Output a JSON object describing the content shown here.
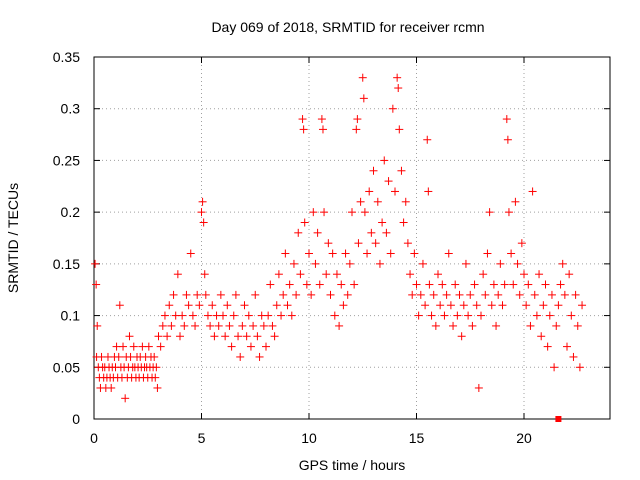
{
  "chart_data": {
    "type": "scatter",
    "title": "Day 069 of 2018, SRMTID for receiver rcmn",
    "xlabel": "GPS time / hours",
    "ylabel": "SRMTID / TECUs",
    "xlim": [
      0,
      24
    ],
    "ylim": [
      0,
      0.35
    ],
    "xticks": [
      0,
      5,
      10,
      15,
      20
    ],
    "xtick_labels": [
      "0",
      "5",
      "10",
      "15",
      "20"
    ],
    "yticks": [
      0,
      0.05,
      0.1,
      0.15,
      0.2,
      0.25,
      0.3,
      0.35
    ],
    "ytick_labels": [
      "0",
      "0.05",
      "0.1",
      "0.15",
      "0.2",
      "0.25",
      "0.3",
      "0.35"
    ],
    "grid": true,
    "marker": "+",
    "color": "#ff0000",
    "outlier_marker": {
      "x": 21.6,
      "y": 0.0,
      "shape": "square"
    },
    "series": [
      {
        "name": "SRMTID",
        "points": [
          [
            0.05,
            0.15
          ],
          [
            0.1,
            0.13
          ],
          [
            0.12,
            0.06
          ],
          [
            0.15,
            0.09
          ],
          [
            0.2,
            0.05
          ],
          [
            0.25,
            0.04
          ],
          [
            0.3,
            0.03
          ],
          [
            0.35,
            0.06
          ],
          [
            0.4,
            0.05
          ],
          [
            0.45,
            0.04
          ],
          [
            0.5,
            0.05
          ],
          [
            0.55,
            0.03
          ],
          [
            0.6,
            0.04
          ],
          [
            0.65,
            0.06
          ],
          [
            0.7,
            0.05
          ],
          [
            0.75,
            0.04
          ],
          [
            0.8,
            0.03
          ],
          [
            0.85,
            0.05
          ],
          [
            0.9,
            0.04
          ],
          [
            0.95,
            0.06
          ],
          [
            1.0,
            0.05
          ],
          [
            1.05,
            0.07
          ],
          [
            1.1,
            0.04
          ],
          [
            1.15,
            0.06
          ],
          [
            1.2,
            0.11
          ],
          [
            1.25,
            0.05
          ],
          [
            1.3,
            0.04
          ],
          [
            1.35,
            0.07
          ],
          [
            1.4,
            0.05
          ],
          [
            1.45,
            0.02
          ],
          [
            1.5,
            0.06
          ],
          [
            1.55,
            0.04
          ],
          [
            1.6,
            0.05
          ],
          [
            1.65,
            0.08
          ],
          [
            1.7,
            0.06
          ],
          [
            1.75,
            0.04
          ],
          [
            1.8,
            0.05
          ],
          [
            1.85,
            0.07
          ],
          [
            1.9,
            0.05
          ],
          [
            1.95,
            0.04
          ],
          [
            2.0,
            0.06
          ],
          [
            2.05,
            0.05
          ],
          [
            2.1,
            0.04
          ],
          [
            2.15,
            0.06
          ],
          [
            2.2,
            0.05
          ],
          [
            2.25,
            0.07
          ],
          [
            2.3,
            0.04
          ],
          [
            2.35,
            0.05
          ],
          [
            2.4,
            0.06
          ],
          [
            2.45,
            0.05
          ],
          [
            2.5,
            0.04
          ],
          [
            2.55,
            0.07
          ],
          [
            2.6,
            0.05
          ],
          [
            2.65,
            0.06
          ],
          [
            2.7,
            0.04
          ],
          [
            2.75,
            0.05
          ],
          [
            2.8,
            0.06
          ],
          [
            2.85,
            0.04
          ],
          [
            2.9,
            0.05
          ],
          [
            2.95,
            0.03
          ],
          [
            3.0,
            0.08
          ],
          [
            3.1,
            0.07
          ],
          [
            3.2,
            0.09
          ],
          [
            3.3,
            0.1
          ],
          [
            3.4,
            0.08
          ],
          [
            3.5,
            0.11
          ],
          [
            3.6,
            0.09
          ],
          [
            3.7,
            0.12
          ],
          [
            3.8,
            0.1
          ],
          [
            3.9,
            0.14
          ],
          [
            4.0,
            0.08
          ],
          [
            4.1,
            0.1
          ],
          [
            4.2,
            0.09
          ],
          [
            4.3,
            0.12
          ],
          [
            4.4,
            0.11
          ],
          [
            4.5,
            0.16
          ],
          [
            4.6,
            0.1
          ],
          [
            4.7,
            0.09
          ],
          [
            4.8,
            0.12
          ],
          [
            4.9,
            0.11
          ],
          [
            5.0,
            0.2
          ],
          [
            5.05,
            0.21
          ],
          [
            5.1,
            0.19
          ],
          [
            5.15,
            0.14
          ],
          [
            5.2,
            0.12
          ],
          [
            5.3,
            0.1
          ],
          [
            5.4,
            0.09
          ],
          [
            5.5,
            0.11
          ],
          [
            5.6,
            0.08
          ],
          [
            5.7,
            0.1
          ],
          [
            5.8,
            0.09
          ],
          [
            5.9,
            0.12
          ],
          [
            6.0,
            0.1
          ],
          [
            6.1,
            0.08
          ],
          [
            6.2,
            0.11
          ],
          [
            6.3,
            0.09
          ],
          [
            6.4,
            0.07
          ],
          [
            6.5,
            0.1
          ],
          [
            6.6,
            0.12
          ],
          [
            6.7,
            0.08
          ],
          [
            6.8,
            0.06
          ],
          [
            6.9,
            0.09
          ],
          [
            7.0,
            0.11
          ],
          [
            7.1,
            0.08
          ],
          [
            7.2,
            0.1
          ],
          [
            7.3,
            0.07
          ],
          [
            7.4,
            0.09
          ],
          [
            7.5,
            0.12
          ],
          [
            7.6,
            0.08
          ],
          [
            7.7,
            0.06
          ],
          [
            7.8,
            0.1
          ],
          [
            7.9,
            0.09
          ],
          [
            8.0,
            0.07
          ],
          [
            8.1,
            0.1
          ],
          [
            8.2,
            0.13
          ],
          [
            8.3,
            0.09
          ],
          [
            8.4,
            0.08
          ],
          [
            8.5,
            0.11
          ],
          [
            8.6,
            0.14
          ],
          [
            8.7,
            0.1
          ],
          [
            8.8,
            0.12
          ],
          [
            8.9,
            0.16
          ],
          [
            9.0,
            0.11
          ],
          [
            9.1,
            0.13
          ],
          [
            9.2,
            0.1
          ],
          [
            9.3,
            0.15
          ],
          [
            9.4,
            0.12
          ],
          [
            9.5,
            0.18
          ],
          [
            9.6,
            0.14
          ],
          [
            9.7,
            0.29
          ],
          [
            9.75,
            0.28
          ],
          [
            9.8,
            0.19
          ],
          [
            9.9,
            0.13
          ],
          [
            10.0,
            0.16
          ],
          [
            10.1,
            0.12
          ],
          [
            10.2,
            0.2
          ],
          [
            10.3,
            0.15
          ],
          [
            10.4,
            0.18
          ],
          [
            10.5,
            0.13
          ],
          [
            10.6,
            0.29
          ],
          [
            10.65,
            0.28
          ],
          [
            10.7,
            0.2
          ],
          [
            10.8,
            0.14
          ],
          [
            10.9,
            0.17
          ],
          [
            11.0,
            0.12
          ],
          [
            11.1,
            0.16
          ],
          [
            11.2,
            0.1
          ],
          [
            11.3,
            0.14
          ],
          [
            11.4,
            0.09
          ],
          [
            11.5,
            0.13
          ],
          [
            11.6,
            0.11
          ],
          [
            11.7,
            0.16
          ],
          [
            11.8,
            0.12
          ],
          [
            11.9,
            0.15
          ],
          [
            12.0,
            0.2
          ],
          [
            12.1,
            0.13
          ],
          [
            12.2,
            0.28
          ],
          [
            12.25,
            0.29
          ],
          [
            12.3,
            0.17
          ],
          [
            12.4,
            0.21
          ],
          [
            12.5,
            0.33
          ],
          [
            12.55,
            0.31
          ],
          [
            12.6,
            0.2
          ],
          [
            12.7,
            0.16
          ],
          [
            12.8,
            0.22
          ],
          [
            12.9,
            0.18
          ],
          [
            13.0,
            0.24
          ],
          [
            13.1,
            0.17
          ],
          [
            13.2,
            0.21
          ],
          [
            13.3,
            0.15
          ],
          [
            13.4,
            0.19
          ],
          [
            13.5,
            0.25
          ],
          [
            13.6,
            0.18
          ],
          [
            13.7,
            0.23
          ],
          [
            13.8,
            0.16
          ],
          [
            13.9,
            0.3
          ],
          [
            14.0,
            0.22
          ],
          [
            14.1,
            0.33
          ],
          [
            14.15,
            0.32
          ],
          [
            14.2,
            0.28
          ],
          [
            14.3,
            0.24
          ],
          [
            14.4,
            0.19
          ],
          [
            14.5,
            0.21
          ],
          [
            14.6,
            0.17
          ],
          [
            14.7,
            0.14
          ],
          [
            14.8,
            0.12
          ],
          [
            14.9,
            0.16
          ],
          [
            15.0,
            0.13
          ],
          [
            15.1,
            0.1
          ],
          [
            15.2,
            0.12
          ],
          [
            15.3,
            0.15
          ],
          [
            15.4,
            0.11
          ],
          [
            15.5,
            0.27
          ],
          [
            15.55,
            0.22
          ],
          [
            15.6,
            0.13
          ],
          [
            15.7,
            0.1
          ],
          [
            15.8,
            0.12
          ],
          [
            15.9,
            0.09
          ],
          [
            16.0,
            0.14
          ],
          [
            16.1,
            0.11
          ],
          [
            16.2,
            0.13
          ],
          [
            16.3,
            0.1
          ],
          [
            16.4,
            0.12
          ],
          [
            16.5,
            0.16
          ],
          [
            16.6,
            0.11
          ],
          [
            16.7,
            0.09
          ],
          [
            16.8,
            0.13
          ],
          [
            16.9,
            0.1
          ],
          [
            17.0,
            0.12
          ],
          [
            17.1,
            0.08
          ],
          [
            17.2,
            0.11
          ],
          [
            17.3,
            0.15
          ],
          [
            17.4,
            0.1
          ],
          [
            17.5,
            0.12
          ],
          [
            17.6,
            0.09
          ],
          [
            17.7,
            0.13
          ],
          [
            17.8,
            0.11
          ],
          [
            17.9,
            0.03
          ],
          [
            18.0,
            0.1
          ],
          [
            18.1,
            0.14
          ],
          [
            18.2,
            0.12
          ],
          [
            18.3,
            0.16
          ],
          [
            18.4,
            0.2
          ],
          [
            18.5,
            0.11
          ],
          [
            18.6,
            0.13
          ],
          [
            18.7,
            0.09
          ],
          [
            18.8,
            0.12
          ],
          [
            18.9,
            0.15
          ],
          [
            19.0,
            0.11
          ],
          [
            19.1,
            0.13
          ],
          [
            19.2,
            0.29
          ],
          [
            19.25,
            0.27
          ],
          [
            19.3,
            0.2
          ],
          [
            19.4,
            0.16
          ],
          [
            19.5,
            0.13
          ],
          [
            19.6,
            0.21
          ],
          [
            19.7,
            0.15
          ],
          [
            19.8,
            0.12
          ],
          [
            19.9,
            0.17
          ],
          [
            20.0,
            0.14
          ],
          [
            20.1,
            0.11
          ],
          [
            20.2,
            0.13
          ],
          [
            20.3,
            0.09
          ],
          [
            20.4,
            0.22
          ],
          [
            20.5,
            0.12
          ],
          [
            20.6,
            0.1
          ],
          [
            20.7,
            0.14
          ],
          [
            20.8,
            0.08
          ],
          [
            20.9,
            0.11
          ],
          [
            21.0,
            0.13
          ],
          [
            21.1,
            0.07
          ],
          [
            21.2,
            0.1
          ],
          [
            21.3,
            0.12
          ],
          [
            21.4,
            0.05
          ],
          [
            21.5,
            0.09
          ],
          [
            21.6,
            0.11
          ],
          [
            21.7,
            0.13
          ],
          [
            21.8,
            0.15
          ],
          [
            21.9,
            0.12
          ],
          [
            22.0,
            0.07
          ],
          [
            22.1,
            0.14
          ],
          [
            22.2,
            0.1
          ],
          [
            22.3,
            0.06
          ],
          [
            22.4,
            0.12
          ],
          [
            22.5,
            0.09
          ],
          [
            22.6,
            0.05
          ],
          [
            22.7,
            0.11
          ]
        ]
      }
    ]
  }
}
